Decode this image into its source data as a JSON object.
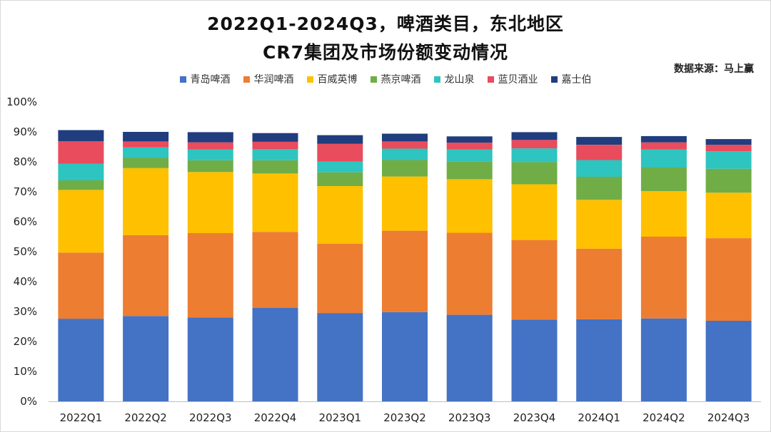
{
  "title_line1": "2022Q1-2024Q3，啤酒类目，东北地区",
  "title_line2": "CR7集团及市场份额变动情况",
  "source": "数据来源：马上赢",
  "chart_data": {
    "type": "bar",
    "stacked": true,
    "categories": [
      "2022Q1",
      "2022Q2",
      "2022Q3",
      "2022Q4",
      "2023Q1",
      "2023Q2",
      "2023Q3",
      "2023Q4",
      "2024Q1",
      "2024Q2",
      "2024Q3"
    ],
    "ylim": [
      0,
      100
    ],
    "yticks": [
      "0%",
      "10%",
      "20%",
      "30%",
      "40%",
      "50%",
      "60%",
      "70%",
      "80%",
      "90%",
      "100%"
    ],
    "legend_position": "top",
    "grid": false,
    "series": [
      {
        "name": "青岛啤酒",
        "color": "#4472C4",
        "values": [
          27.6,
          28.5,
          28.0,
          31.2,
          29.5,
          29.8,
          28.9,
          27.3,
          27.4,
          27.7,
          26.9
        ]
      },
      {
        "name": "华润啤酒",
        "color": "#ED7D31",
        "values": [
          22.1,
          27.0,
          28.2,
          25.4,
          23.2,
          27.2,
          27.4,
          26.6,
          23.6,
          27.3,
          27.6
        ]
      },
      {
        "name": "百威英博",
        "color": "#FFC000",
        "values": [
          20.9,
          22.4,
          20.4,
          19.5,
          19.2,
          18.1,
          17.9,
          18.6,
          16.3,
          15.2,
          15.2
        ]
      },
      {
        "name": "燕京啤酒",
        "color": "#70AD47",
        "values": [
          3.2,
          3.4,
          3.9,
          4.4,
          4.6,
          5.5,
          6.0,
          7.4,
          7.7,
          7.9,
          8.0
        ]
      },
      {
        "name": "龙山泉",
        "color": "#2EC4C0",
        "values": [
          5.6,
          3.5,
          3.6,
          3.8,
          3.6,
          3.8,
          3.9,
          4.6,
          5.6,
          6.0,
          5.8
        ]
      },
      {
        "name": "蓝贝酒业",
        "color": "#E84C5D",
        "values": [
          7.5,
          2.0,
          2.4,
          2.4,
          5.9,
          2.4,
          2.3,
          2.8,
          5.1,
          2.4,
          2.2
        ]
      },
      {
        "name": "嘉士伯",
        "color": "#203D7E",
        "values": [
          3.7,
          3.2,
          3.4,
          2.9,
          2.9,
          2.6,
          2.1,
          2.6,
          2.6,
          2.1,
          1.9
        ]
      }
    ]
  }
}
